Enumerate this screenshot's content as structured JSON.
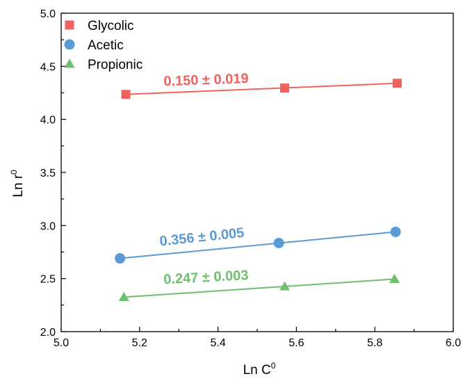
{
  "chart_data": {
    "type": "scatter",
    "xlabel": "Ln C",
    "xlabel_sup": "0",
    "ylabel": "Ln r",
    "ylabel_sup": "0",
    "xlim": [
      5.0,
      6.0
    ],
    "ylim": [
      2.0,
      5.0
    ],
    "xticks": [
      "5.0",
      "5.2",
      "5.4",
      "5.6",
      "5.8",
      "6.0"
    ],
    "yticks": [
      "2.0",
      "2.5",
      "3.0",
      "3.5",
      "4.0",
      "4.5",
      "5.0"
    ],
    "grid": false,
    "legend_position": "top-left",
    "series": [
      {
        "name": "Glycolic",
        "marker": "square",
        "color": "#f0625d",
        "points": [
          [
            5.165,
            4.235
          ],
          [
            5.57,
            4.295
          ],
          [
            5.857,
            4.34
          ]
        ],
        "fit": [
          [
            5.165,
            4.235
          ],
          [
            5.857,
            4.34
          ]
        ],
        "slope_label": "0.150 ± 0.019",
        "label_at": [
          5.37,
          4.33
        ],
        "label_angle": -2
      },
      {
        "name": "Acetic",
        "marker": "circle",
        "color": "#5b9bd5",
        "points": [
          [
            5.15,
            2.69
          ],
          [
            5.555,
            2.835
          ],
          [
            5.853,
            2.94
          ]
        ],
        "fit": [
          [
            5.15,
            2.69
          ],
          [
            5.853,
            2.94
          ]
        ],
        "slope_label": "0.356 ± 0.005",
        "label_at": [
          5.36,
          2.85
        ],
        "label_angle": -6
      },
      {
        "name": "Propionic",
        "marker": "triangle",
        "color": "#6fbf6f",
        "points": [
          [
            5.16,
            2.325
          ],
          [
            5.57,
            2.425
          ],
          [
            5.85,
            2.495
          ]
        ],
        "fit": [
          [
            5.16,
            2.325
          ],
          [
            5.85,
            2.495
          ]
        ],
        "slope_label": "0.247 ± 0.003",
        "label_at": [
          5.37,
          2.47
        ],
        "label_angle": -3
      }
    ]
  }
}
